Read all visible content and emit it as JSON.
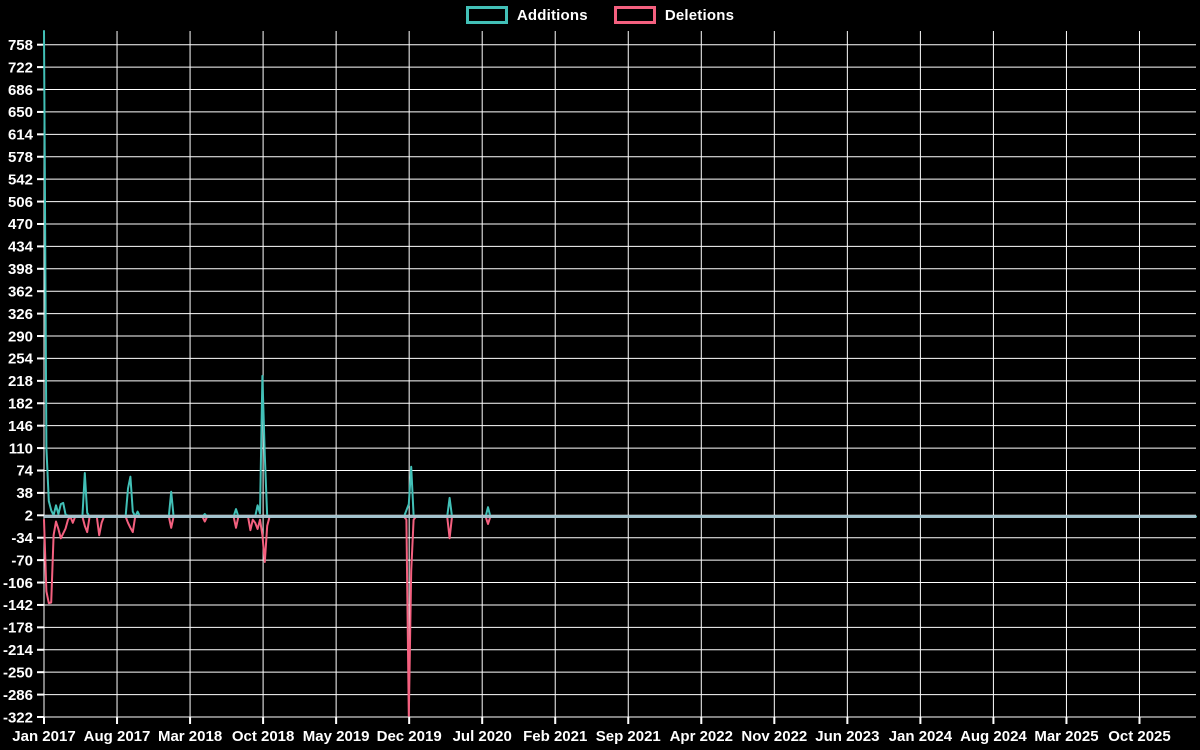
{
  "chart": {
    "background_color": "#000000",
    "grid_color": "#ffffff",
    "text_color": "#ffffff",
    "zero_line_color": "#a6c3ce"
  },
  "legend": {
    "items": [
      {
        "label": "Additions",
        "color": "#42c0b7"
      },
      {
        "label": "Deletions",
        "color": "#f4607f"
      }
    ]
  },
  "chart_data": {
    "type": "line",
    "title": "",
    "xlabel": "",
    "ylabel": "",
    "grid": true,
    "legend_position": "top",
    "x_tick_labels": [
      "Jan 2017",
      "Aug 2017",
      "Mar 2018",
      "Oct 2018",
      "May 2019",
      "Dec 2019",
      "Jul 2020",
      "Feb 2021",
      "Sep 2021",
      "Apr 2022",
      "Nov 2022",
      "Jun 2023",
      "Jan 2024",
      "Aug 2024",
      "Mar 2025",
      "Oct 2025"
    ],
    "x_weeks_per_tick": 30.43,
    "xlim_weeks": [
      0,
      480
    ],
    "ylim": [
      -322,
      780
    ],
    "y_ticks": [
      758,
      722,
      686,
      650,
      614,
      578,
      542,
      506,
      470,
      434,
      398,
      362,
      326,
      290,
      254,
      218,
      182,
      146,
      110,
      74,
      38,
      2,
      -34,
      -70,
      -106,
      -142,
      -178,
      -214,
      -250,
      -286,
      -322
    ],
    "series": [
      {
        "name": "Additions",
        "color": "#42c0b7",
        "points": [
          [
            0,
            780
          ],
          [
            1,
            110
          ],
          [
            2,
            25
          ],
          [
            3,
            10
          ],
          [
            4,
            2
          ],
          [
            5,
            18
          ],
          [
            6,
            4
          ],
          [
            7,
            20
          ],
          [
            8,
            22
          ],
          [
            9,
            3
          ],
          [
            11,
            0
          ],
          [
            16,
            0
          ],
          [
            17,
            70
          ],
          [
            18,
            6
          ],
          [
            19,
            0
          ],
          [
            34,
            0
          ],
          [
            35,
            45
          ],
          [
            36,
            64
          ],
          [
            37,
            8
          ],
          [
            38,
            0
          ],
          [
            39,
            8
          ],
          [
            40,
            0
          ],
          [
            52,
            0
          ],
          [
            53,
            40
          ],
          [
            54,
            0
          ],
          [
            66,
            0
          ],
          [
            67,
            4
          ],
          [
            68,
            0
          ],
          [
            79,
            0
          ],
          [
            80,
            12
          ],
          [
            81,
            0
          ],
          [
            88,
            0
          ],
          [
            89,
            18
          ],
          [
            90,
            5
          ],
          [
            91,
            226
          ],
          [
            92,
            98
          ],
          [
            93,
            0
          ],
          [
            150,
            0
          ],
          [
            152,
            20
          ],
          [
            153,
            80
          ],
          [
            154,
            2
          ],
          [
            155,
            0
          ],
          [
            168,
            0
          ],
          [
            169,
            30
          ],
          [
            170,
            0
          ],
          [
            184,
            0
          ],
          [
            185,
            15
          ],
          [
            186,
            0
          ],
          [
            480,
            0
          ]
        ]
      },
      {
        "name": "Deletions",
        "color": "#f4607f",
        "points": [
          [
            0,
            -5
          ],
          [
            1,
            -120
          ],
          [
            2,
            -139
          ],
          [
            3,
            -138
          ],
          [
            4,
            -30
          ],
          [
            5,
            -8
          ],
          [
            6,
            -20
          ],
          [
            7,
            -35
          ],
          [
            8,
            -27
          ],
          [
            9,
            -19
          ],
          [
            10,
            -5
          ],
          [
            11,
            0
          ],
          [
            12,
            -10
          ],
          [
            13,
            0
          ],
          [
            16,
            0
          ],
          [
            17,
            -15
          ],
          [
            18,
            -25
          ],
          [
            19,
            0
          ],
          [
            22,
            0
          ],
          [
            23,
            -30
          ],
          [
            24,
            -10
          ],
          [
            25,
            0
          ],
          [
            34,
            0
          ],
          [
            35,
            -10
          ],
          [
            36,
            -18
          ],
          [
            37,
            -25
          ],
          [
            38,
            0
          ],
          [
            52,
            0
          ],
          [
            53,
            -18
          ],
          [
            54,
            0
          ],
          [
            66,
            0
          ],
          [
            67,
            -8
          ],
          [
            68,
            0
          ],
          [
            79,
            0
          ],
          [
            80,
            -18
          ],
          [
            81,
            0
          ],
          [
            85,
            0
          ],
          [
            86,
            -22
          ],
          [
            87,
            -5
          ],
          [
            88,
            -10
          ],
          [
            89,
            -20
          ],
          [
            90,
            -5
          ],
          [
            91,
            -30
          ],
          [
            92,
            -73
          ],
          [
            93,
            -15
          ],
          [
            94,
            0
          ],
          [
            150,
            0
          ],
          [
            151,
            -5
          ],
          [
            152,
            -320
          ],
          [
            153,
            -88
          ],
          [
            154,
            -5
          ],
          [
            155,
            0
          ],
          [
            168,
            0
          ],
          [
            169,
            -35
          ],
          [
            170,
            0
          ],
          [
            184,
            0
          ],
          [
            185,
            -12
          ],
          [
            186,
            0
          ],
          [
            480,
            0
          ]
        ]
      }
    ]
  }
}
